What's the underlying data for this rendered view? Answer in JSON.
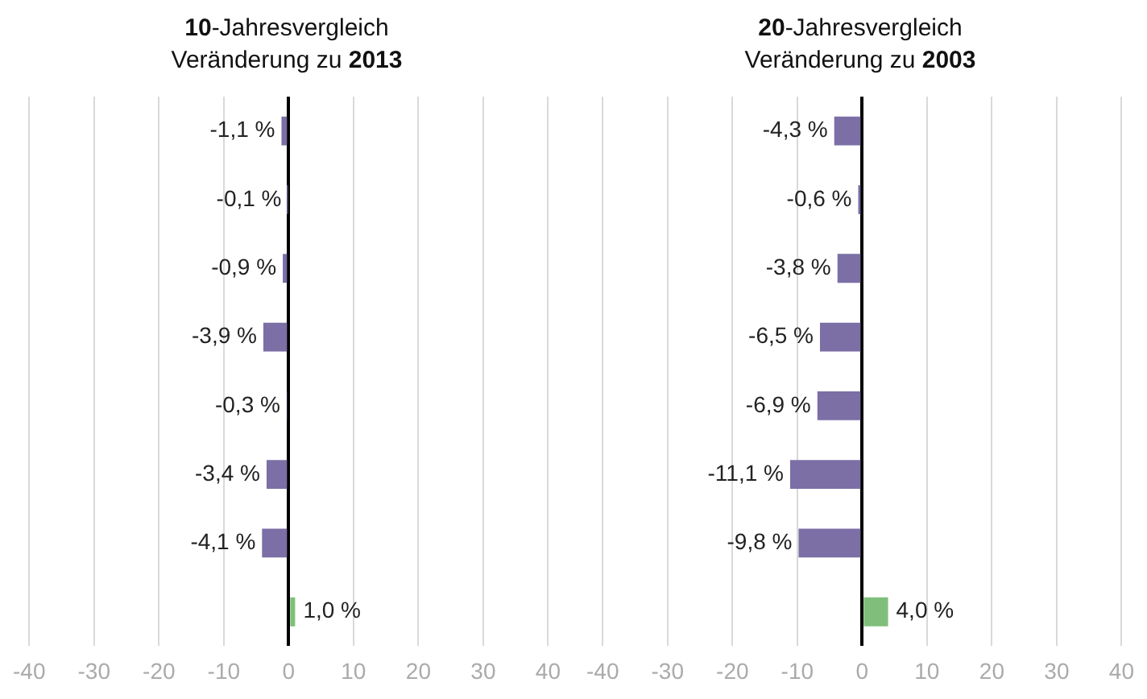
{
  "chart_data": [
    {
      "type": "bar",
      "orientation": "horizontal",
      "title": "10-Jahresvergleich",
      "subtitle": "Veränderung zu 2013",
      "categories": [
        null,
        null,
        null,
        null,
        null,
        null,
        null,
        null
      ],
      "values": [
        -1.1,
        -0.1,
        -0.9,
        -3.9,
        -0.3,
        -3.4,
        -4.1,
        1.0
      ],
      "colors": [
        "#7b6fa6",
        "#7b6fa6",
        "#7b6fa6",
        "#7b6fa6",
        "#7b6fa6",
        "#7b6fa6",
        "#7b6fa6",
        "#7fbf7b"
      ],
      "value_labels": [
        "-1,1 %",
        "-0,1 %",
        "-0,9 %",
        "-3,9 %",
        "-0,3 %",
        "-3,4 %",
        "-4,1 %",
        "1,0 %"
      ],
      "xlim": [
        -40,
        40
      ],
      "xticks": [
        -40,
        -30,
        -20,
        -10,
        0,
        10,
        20,
        30,
        40
      ],
      "grid": "x",
      "tick_labels": "x",
      "legend": false
    },
    {
      "type": "bar",
      "orientation": "horizontal",
      "title": "20-Jahresvergleich",
      "subtitle": "Veränderung zu 2003",
      "categories": [
        null,
        null,
        null,
        null,
        null,
        null,
        null,
        null
      ],
      "values": [
        -4.3,
        -0.6,
        -3.8,
        -6.5,
        -6.9,
        -11.1,
        -9.8,
        4.0
      ],
      "colors": [
        "#7b6fa6",
        "#7b6fa6",
        "#7b6fa6",
        "#7b6fa6",
        "#7b6fa6",
        "#7b6fa6",
        "#7b6fa6",
        "#7fbf7b"
      ],
      "value_labels": [
        "-4,3 %",
        "-0,6 %",
        "-3,8 %",
        "-6,5 %",
        "-6,9 %",
        "-11,1 %",
        "-9,8 %",
        "4,0 %"
      ],
      "xlim": [
        -40,
        40
      ],
      "xticks": [
        -40,
        -30,
        -20,
        -10,
        0,
        10,
        20,
        30,
        40
      ],
      "grid": "x",
      "tick_labels": "x",
      "legend": false
    }
  ]
}
